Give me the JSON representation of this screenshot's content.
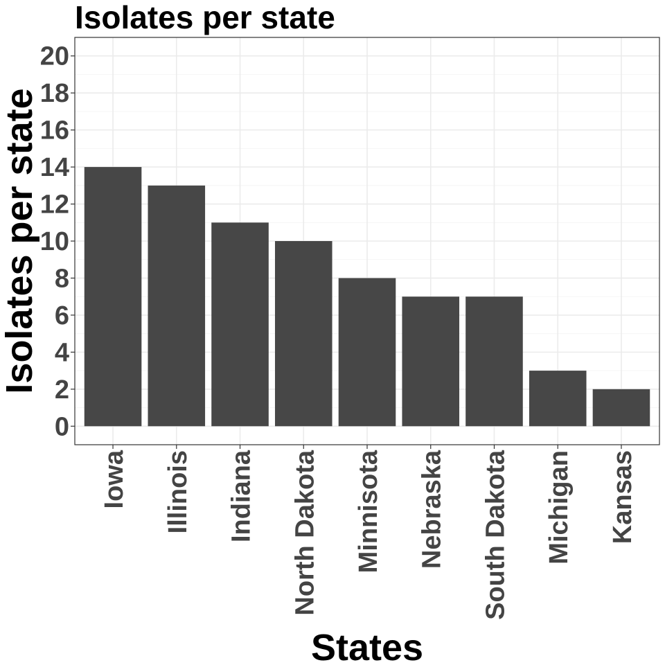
{
  "chart_data": {
    "type": "bar",
    "title": "Isolates per state",
    "xlabel": "States",
    "ylabel": "Isolates per state",
    "categories": [
      "Iowa",
      "Illinois",
      "Indiana",
      "North Dakota",
      "Minnisota",
      "Nebraska",
      "South Dakota",
      "Michigan",
      "Kansas"
    ],
    "values": [
      14,
      13,
      11,
      10,
      8,
      7,
      7,
      3,
      2
    ],
    "ylim": [
      -1,
      21
    ],
    "yticks": [
      0,
      2,
      4,
      6,
      8,
      10,
      12,
      14,
      16,
      18,
      20
    ],
    "grid": true,
    "legend": "none",
    "bar_color": "#474747"
  }
}
